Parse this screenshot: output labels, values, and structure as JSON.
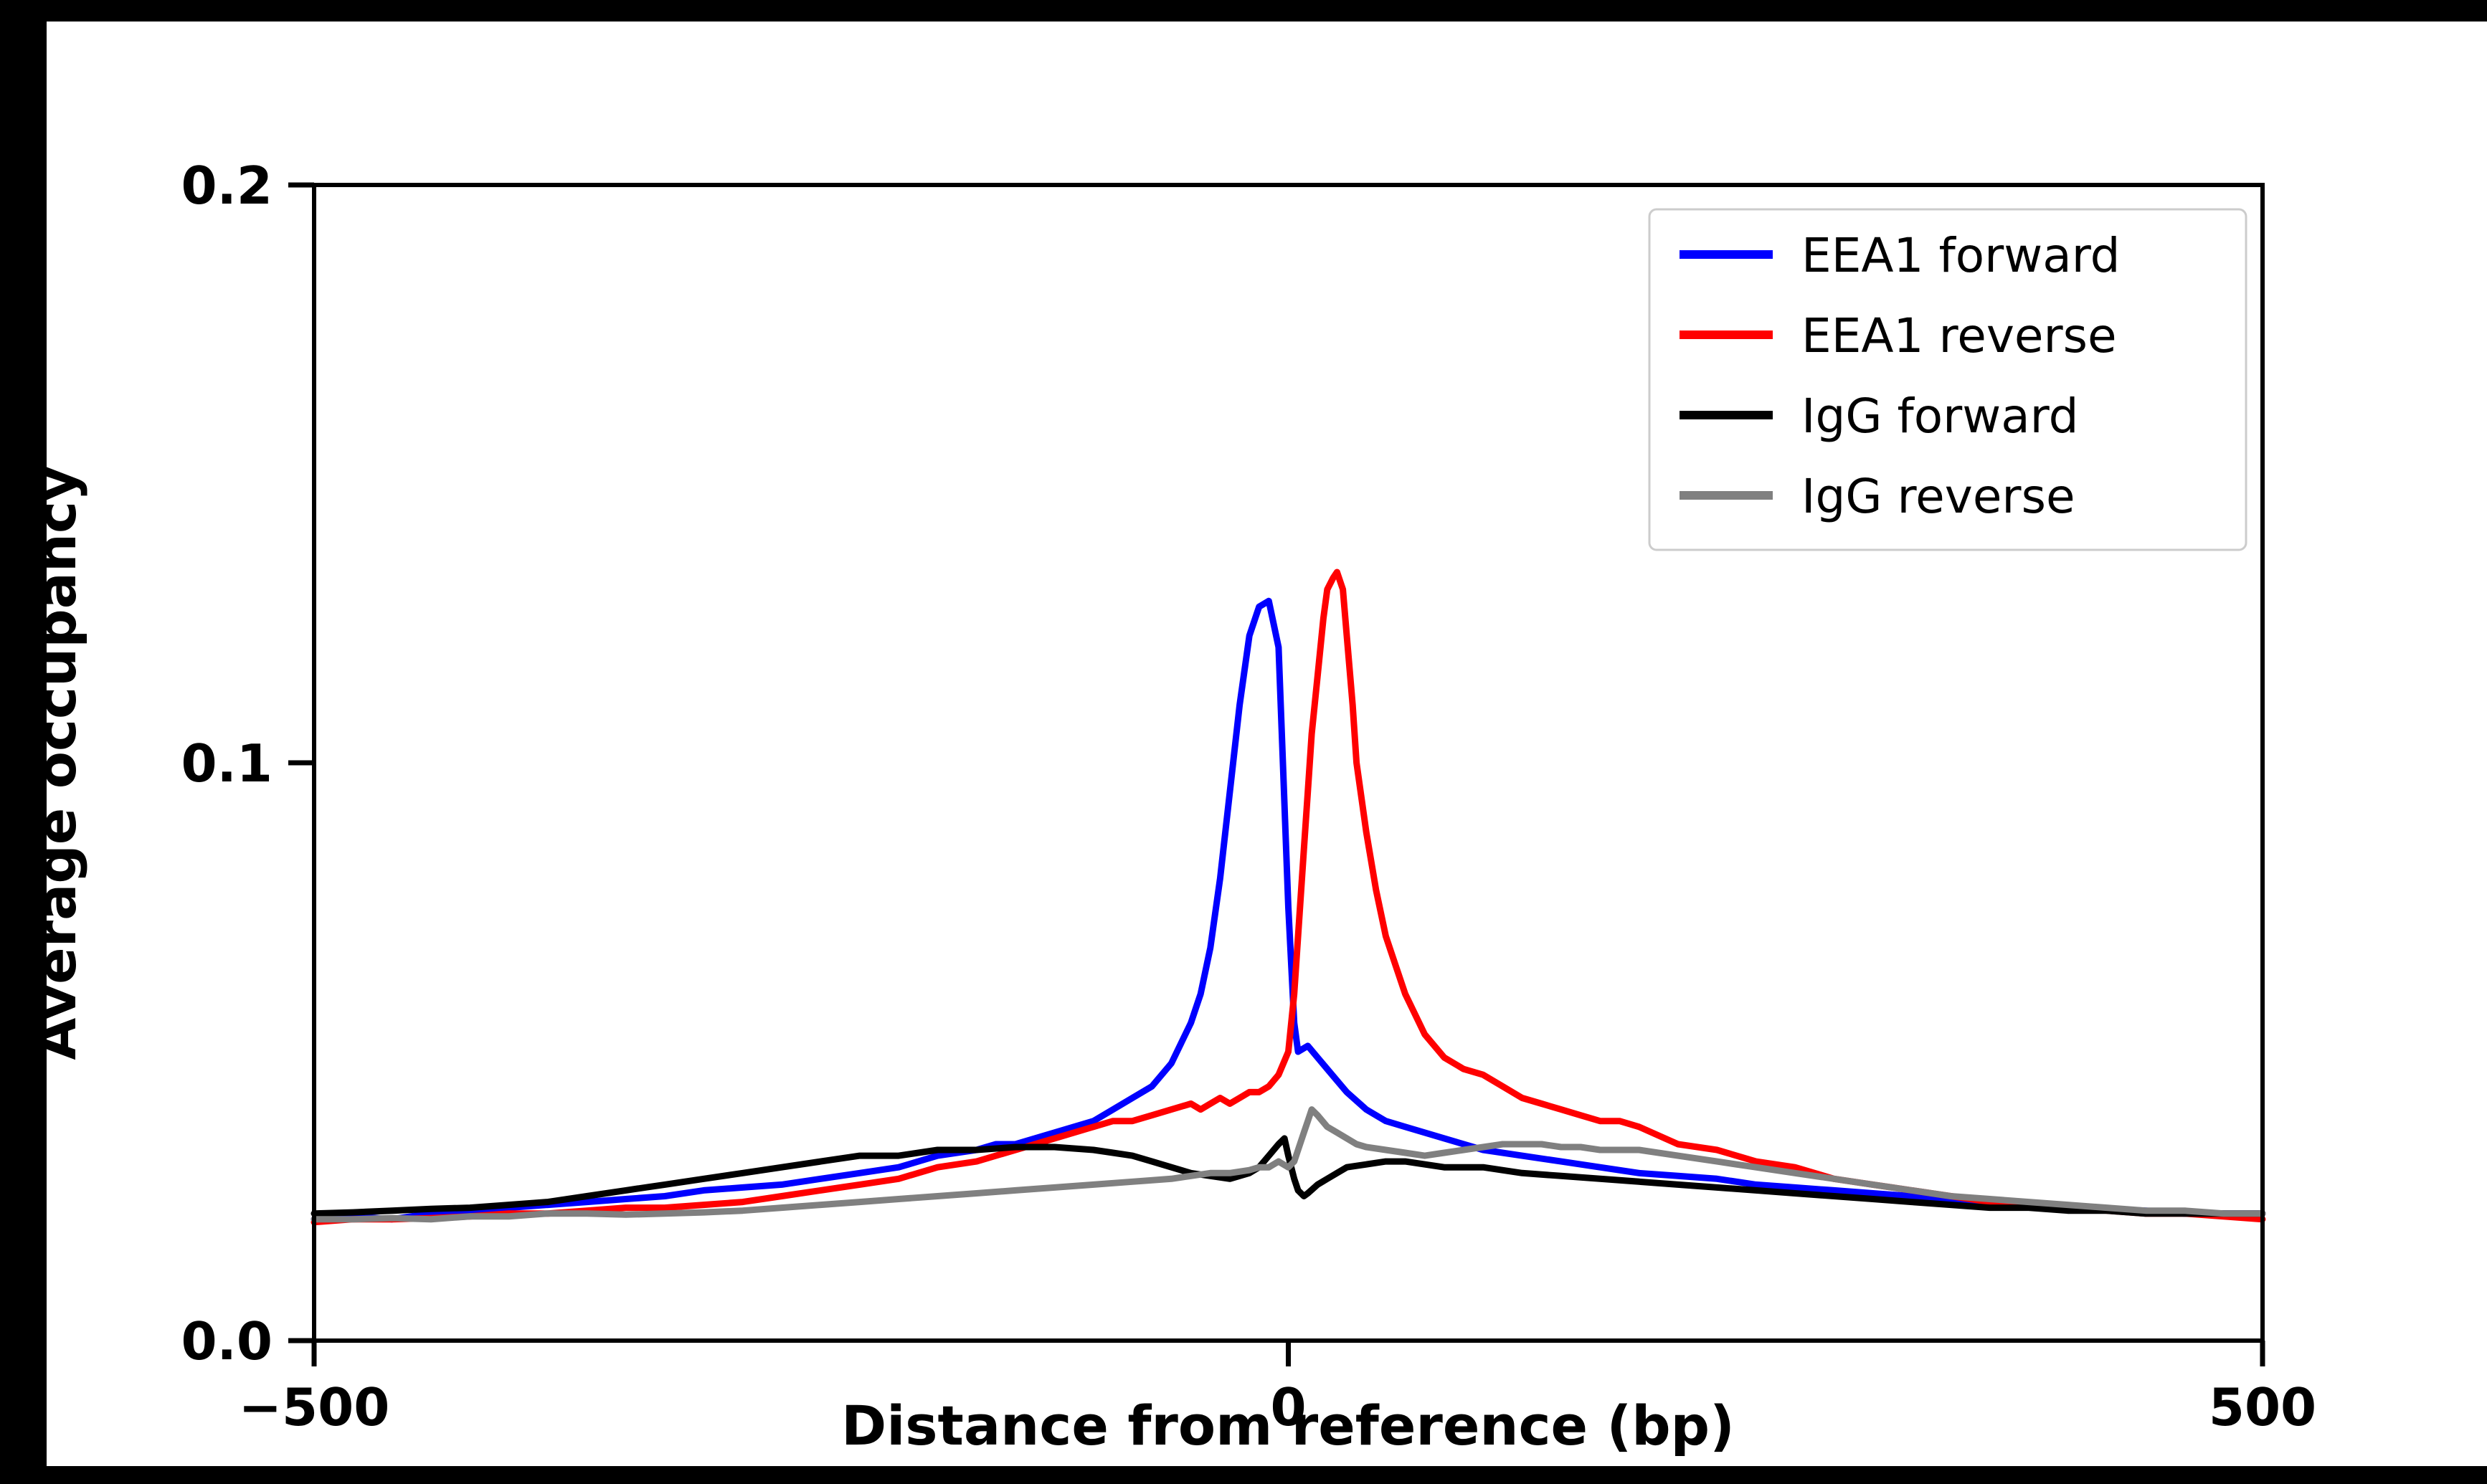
{
  "figure": {
    "background_color": "#ffffff",
    "frame_color": "#000000"
  },
  "chart_data": {
    "type": "line",
    "title": "",
    "xlabel": "Distance from reference (bp)",
    "ylabel": "Average occupancy",
    "xlim": [
      -500,
      500
    ],
    "ylim": [
      0,
      0.2
    ],
    "xticks": [
      -500,
      0,
      500
    ],
    "xtick_labels": [
      "−500",
      "0",
      "500"
    ],
    "yticks": [
      0.0,
      0.1,
      0.2
    ],
    "ytick_labels": [
      "0.0",
      "0.1",
      "0.2"
    ],
    "grid": false,
    "legend_position": "upper right",
    "series": [
      {
        "name": "EEA1 forward",
        "color": "#0000ff",
        "points": [
          [
            -500,
            0.021
          ],
          [
            -480,
            0.0215
          ],
          [
            -460,
            0.021
          ],
          [
            -440,
            0.022
          ],
          [
            -420,
            0.0225
          ],
          [
            -400,
            0.023
          ],
          [
            -380,
            0.0235
          ],
          [
            -360,
            0.024
          ],
          [
            -340,
            0.0245
          ],
          [
            -320,
            0.025
          ],
          [
            -300,
            0.026
          ],
          [
            -280,
            0.0265
          ],
          [
            -260,
            0.027
          ],
          [
            -240,
            0.028
          ],
          [
            -220,
            0.029
          ],
          [
            -200,
            0.03
          ],
          [
            -180,
            0.032
          ],
          [
            -160,
            0.033
          ],
          [
            -150,
            0.034
          ],
          [
            -140,
            0.034
          ],
          [
            -120,
            0.036
          ],
          [
            -100,
            0.038
          ],
          [
            -90,
            0.04
          ],
          [
            -80,
            0.042
          ],
          [
            -70,
            0.044
          ],
          [
            -60,
            0.048
          ],
          [
            -50,
            0.055
          ],
          [
            -45,
            0.06
          ],
          [
            -40,
            0.068
          ],
          [
            -35,
            0.08
          ],
          [
            -30,
            0.095
          ],
          [
            -25,
            0.11
          ],
          [
            -20,
            0.122
          ],
          [
            -15,
            0.127
          ],
          [
            -10,
            0.128
          ],
          [
            -5,
            0.12
          ],
          [
            0,
            0.075
          ],
          [
            3,
            0.055
          ],
          [
            5,
            0.05
          ],
          [
            10,
            0.051
          ],
          [
            15,
            0.049
          ],
          [
            20,
            0.047
          ],
          [
            25,
            0.045
          ],
          [
            30,
            0.043
          ],
          [
            40,
            0.04
          ],
          [
            50,
            0.038
          ],
          [
            60,
            0.037
          ],
          [
            80,
            0.035
          ],
          [
            100,
            0.033
          ],
          [
            120,
            0.032
          ],
          [
            140,
            0.031
          ],
          [
            160,
            0.03
          ],
          [
            180,
            0.029
          ],
          [
            200,
            0.0285
          ],
          [
            220,
            0.028
          ],
          [
            240,
            0.027
          ],
          [
            260,
            0.0265
          ],
          [
            280,
            0.026
          ],
          [
            300,
            0.0255
          ],
          [
            320,
            0.025
          ],
          [
            340,
            0.0245
          ],
          [
            360,
            0.024
          ],
          [
            380,
            0.0235
          ],
          [
            400,
            0.023
          ],
          [
            420,
            0.0228
          ],
          [
            440,
            0.0225
          ],
          [
            460,
            0.022
          ],
          [
            480,
            0.022
          ],
          [
            500,
            0.022
          ]
        ]
      },
      {
        "name": "EEA1 reverse",
        "color": "#ff0000",
        "points": [
          [
            -500,
            0.0205
          ],
          [
            -480,
            0.021
          ],
          [
            -460,
            0.021
          ],
          [
            -440,
            0.0212
          ],
          [
            -420,
            0.0215
          ],
          [
            -400,
            0.022
          ],
          [
            -380,
            0.022
          ],
          [
            -360,
            0.0225
          ],
          [
            -340,
            0.023
          ],
          [
            -320,
            0.023
          ],
          [
            -300,
            0.0235
          ],
          [
            -280,
            0.024
          ],
          [
            -260,
            0.025
          ],
          [
            -240,
            0.026
          ],
          [
            -220,
            0.027
          ],
          [
            -200,
            0.028
          ],
          [
            -180,
            0.03
          ],
          [
            -160,
            0.031
          ],
          [
            -140,
            0.033
          ],
          [
            -120,
            0.035
          ],
          [
            -100,
            0.037
          ],
          [
            -90,
            0.038
          ],
          [
            -80,
            0.038
          ],
          [
            -70,
            0.039
          ],
          [
            -60,
            0.04
          ],
          [
            -50,
            0.041
          ],
          [
            -45,
            0.04
          ],
          [
            -40,
            0.041
          ],
          [
            -35,
            0.042
          ],
          [
            -30,
            0.041
          ],
          [
            -25,
            0.042
          ],
          [
            -20,
            0.043
          ],
          [
            -15,
            0.043
          ],
          [
            -10,
            0.044
          ],
          [
            -5,
            0.046
          ],
          [
            0,
            0.05
          ],
          [
            3,
            0.06
          ],
          [
            5,
            0.07
          ],
          [
            8,
            0.085
          ],
          [
            10,
            0.095
          ],
          [
            12,
            0.105
          ],
          [
            15,
            0.115
          ],
          [
            18,
            0.125
          ],
          [
            20,
            0.13
          ],
          [
            23,
            0.132
          ],
          [
            25,
            0.133
          ],
          [
            28,
            0.13
          ],
          [
            30,
            0.122
          ],
          [
            33,
            0.11
          ],
          [
            35,
            0.1
          ],
          [
            40,
            0.088
          ],
          [
            45,
            0.078
          ],
          [
            50,
            0.07
          ],
          [
            55,
            0.065
          ],
          [
            60,
            0.06
          ],
          [
            70,
            0.053
          ],
          [
            80,
            0.049
          ],
          [
            90,
            0.047
          ],
          [
            100,
            0.046
          ],
          [
            110,
            0.044
          ],
          [
            120,
            0.042
          ],
          [
            130,
            0.041
          ],
          [
            140,
            0.04
          ],
          [
            150,
            0.039
          ],
          [
            160,
            0.038
          ],
          [
            170,
            0.038
          ],
          [
            180,
            0.037
          ],
          [
            200,
            0.034
          ],
          [
            220,
            0.033
          ],
          [
            240,
            0.031
          ],
          [
            260,
            0.03
          ],
          [
            280,
            0.028
          ],
          [
            300,
            0.027
          ],
          [
            320,
            0.026
          ],
          [
            340,
            0.025
          ],
          [
            360,
            0.024
          ],
          [
            380,
            0.0235
          ],
          [
            400,
            0.023
          ],
          [
            420,
            0.0225
          ],
          [
            440,
            0.022
          ],
          [
            460,
            0.022
          ],
          [
            480,
            0.0215
          ],
          [
            500,
            0.021
          ]
        ]
      },
      {
        "name": "IgG forward",
        "color": "#000000",
        "points": [
          [
            -500,
            0.022
          ],
          [
            -480,
            0.0222
          ],
          [
            -460,
            0.0225
          ],
          [
            -440,
            0.0228
          ],
          [
            -420,
            0.023
          ],
          [
            -400,
            0.0235
          ],
          [
            -380,
            0.024
          ],
          [
            -360,
            0.025
          ],
          [
            -340,
            0.026
          ],
          [
            -320,
            0.027
          ],
          [
            -300,
            0.028
          ],
          [
            -280,
            0.029
          ],
          [
            -260,
            0.03
          ],
          [
            -240,
            0.031
          ],
          [
            -220,
            0.032
          ],
          [
            -200,
            0.032
          ],
          [
            -180,
            0.033
          ],
          [
            -160,
            0.033
          ],
          [
            -140,
            0.0335
          ],
          [
            -120,
            0.0335
          ],
          [
            -100,
            0.033
          ],
          [
            -90,
            0.0325
          ],
          [
            -80,
            0.032
          ],
          [
            -70,
            0.031
          ],
          [
            -60,
            0.03
          ],
          [
            -50,
            0.029
          ],
          [
            -40,
            0.0285
          ],
          [
            -30,
            0.028
          ],
          [
            -25,
            0.0285
          ],
          [
            -20,
            0.029
          ],
          [
            -15,
            0.03
          ],
          [
            -10,
            0.032
          ],
          [
            -5,
            0.034
          ],
          [
            -2,
            0.035
          ],
          [
            0,
            0.032
          ],
          [
            3,
            0.028
          ],
          [
            5,
            0.026
          ],
          [
            8,
            0.025
          ],
          [
            10,
            0.0255
          ],
          [
            15,
            0.027
          ],
          [
            20,
            0.028
          ],
          [
            25,
            0.029
          ],
          [
            30,
            0.03
          ],
          [
            40,
            0.0305
          ],
          [
            50,
            0.031
          ],
          [
            60,
            0.031
          ],
          [
            80,
            0.03
          ],
          [
            100,
            0.03
          ],
          [
            120,
            0.029
          ],
          [
            140,
            0.0285
          ],
          [
            160,
            0.028
          ],
          [
            180,
            0.0275
          ],
          [
            200,
            0.027
          ],
          [
            220,
            0.0265
          ],
          [
            240,
            0.026
          ],
          [
            260,
            0.0255
          ],
          [
            280,
            0.025
          ],
          [
            300,
            0.0245
          ],
          [
            320,
            0.024
          ],
          [
            340,
            0.0235
          ],
          [
            360,
            0.023
          ],
          [
            380,
            0.023
          ],
          [
            400,
            0.0225
          ],
          [
            420,
            0.0225
          ],
          [
            440,
            0.022
          ],
          [
            460,
            0.022
          ],
          [
            480,
            0.022
          ],
          [
            500,
            0.022
          ]
        ]
      },
      {
        "name": "IgG reverse",
        "color": "#808080",
        "points": [
          [
            -500,
            0.021
          ],
          [
            -480,
            0.021
          ],
          [
            -460,
            0.0212
          ],
          [
            -440,
            0.021
          ],
          [
            -420,
            0.0215
          ],
          [
            -400,
            0.0215
          ],
          [
            -380,
            0.022
          ],
          [
            -360,
            0.022
          ],
          [
            -340,
            0.0218
          ],
          [
            -320,
            0.022
          ],
          [
            -300,
            0.0222
          ],
          [
            -280,
            0.0225
          ],
          [
            -260,
            0.023
          ],
          [
            -240,
            0.0235
          ],
          [
            -220,
            0.024
          ],
          [
            -200,
            0.0245
          ],
          [
            -180,
            0.025
          ],
          [
            -160,
            0.0255
          ],
          [
            -140,
            0.026
          ],
          [
            -120,
            0.0265
          ],
          [
            -100,
            0.027
          ],
          [
            -80,
            0.0275
          ],
          [
            -60,
            0.028
          ],
          [
            -50,
            0.0285
          ],
          [
            -40,
            0.029
          ],
          [
            -30,
            0.029
          ],
          [
            -20,
            0.0295
          ],
          [
            -15,
            0.03
          ],
          [
            -10,
            0.03
          ],
          [
            -5,
            0.031
          ],
          [
            0,
            0.03
          ],
          [
            3,
            0.031
          ],
          [
            5,
            0.033
          ],
          [
            8,
            0.036
          ],
          [
            10,
            0.038
          ],
          [
            12,
            0.04
          ],
          [
            15,
            0.039
          ],
          [
            20,
            0.037
          ],
          [
            25,
            0.036
          ],
          [
            30,
            0.035
          ],
          [
            35,
            0.034
          ],
          [
            40,
            0.0335
          ],
          [
            50,
            0.033
          ],
          [
            60,
            0.0325
          ],
          [
            70,
            0.032
          ],
          [
            80,
            0.0325
          ],
          [
            90,
            0.033
          ],
          [
            100,
            0.0335
          ],
          [
            110,
            0.034
          ],
          [
            120,
            0.034
          ],
          [
            130,
            0.034
          ],
          [
            140,
            0.0335
          ],
          [
            150,
            0.0335
          ],
          [
            160,
            0.033
          ],
          [
            180,
            0.033
          ],
          [
            200,
            0.032
          ],
          [
            220,
            0.031
          ],
          [
            240,
            0.03
          ],
          [
            260,
            0.029
          ],
          [
            280,
            0.028
          ],
          [
            300,
            0.027
          ],
          [
            320,
            0.026
          ],
          [
            340,
            0.025
          ],
          [
            360,
            0.0245
          ],
          [
            380,
            0.024
          ],
          [
            400,
            0.0235
          ],
          [
            420,
            0.023
          ],
          [
            440,
            0.0225
          ],
          [
            460,
            0.0225
          ],
          [
            480,
            0.022
          ],
          [
            500,
            0.022
          ]
        ]
      }
    ]
  }
}
